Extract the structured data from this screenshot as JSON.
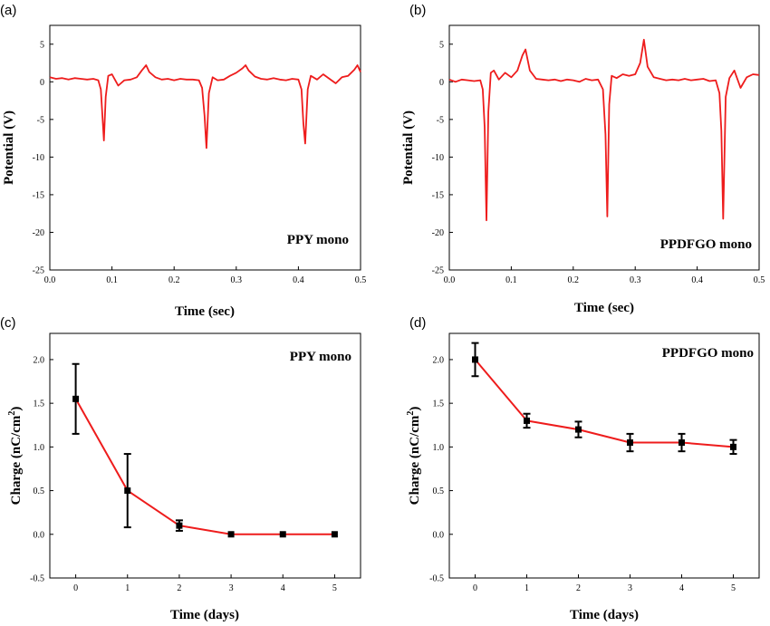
{
  "colors": {
    "series": "#ee1c1c",
    "marker": "#000000",
    "axis": "#000000"
  },
  "chart_data": [
    {
      "panel": "(a)",
      "type": "line",
      "annotation": "PPY mono",
      "xlabel": "Time (sec)",
      "ylabel": "Potential (V)",
      "xlim": [
        0.0,
        0.5
      ],
      "ylim": [
        -25,
        7.5
      ],
      "xticks": [
        "0.0",
        "0.1",
        "0.2",
        "0.3",
        "0.4",
        "0.5"
      ],
      "yticks": [
        "5",
        "0",
        "-5",
        "-10",
        "-15",
        "-20",
        "-25"
      ],
      "series": [
        {
          "x": [
            0.0,
            0.01,
            0.02,
            0.03,
            0.04,
            0.05,
            0.06,
            0.07,
            0.078,
            0.082,
            0.085,
            0.087,
            0.09,
            0.094,
            0.1,
            0.11,
            0.12,
            0.13,
            0.14,
            0.148,
            0.155,
            0.16,
            0.17,
            0.18,
            0.19,
            0.2,
            0.21,
            0.22,
            0.23,
            0.24,
            0.245,
            0.249,
            0.252,
            0.256,
            0.262,
            0.27,
            0.28,
            0.29,
            0.3,
            0.31,
            0.315,
            0.32,
            0.33,
            0.34,
            0.35,
            0.36,
            0.37,
            0.38,
            0.39,
            0.4,
            0.405,
            0.408,
            0.411,
            0.415,
            0.42,
            0.43,
            0.44,
            0.45,
            0.46,
            0.47,
            0.48,
            0.49,
            0.495,
            0.5
          ],
          "values": [
            0.6,
            0.4,
            0.5,
            0.3,
            0.5,
            0.4,
            0.3,
            0.4,
            0.2,
            -1.0,
            -5.0,
            -7.8,
            -2.0,
            0.8,
            1.0,
            -0.5,
            0.2,
            0.3,
            0.6,
            1.5,
            2.2,
            1.3,
            0.6,
            0.3,
            0.4,
            0.2,
            0.4,
            0.3,
            0.3,
            0.2,
            -0.8,
            -4.5,
            -8.8,
            -1.5,
            0.6,
            0.2,
            0.3,
            0.8,
            1.2,
            1.8,
            2.2,
            1.5,
            0.7,
            0.4,
            0.3,
            0.5,
            0.3,
            0.2,
            0.4,
            0.3,
            -1.0,
            -5.5,
            -8.2,
            -1.0,
            0.8,
            0.3,
            1.0,
            0.4,
            -0.2,
            0.6,
            0.8,
            1.6,
            2.2,
            1.3
          ]
        }
      ]
    },
    {
      "panel": "(b)",
      "type": "line",
      "annotation": "PPDFGO mono",
      "xlabel": "Time (sec)",
      "ylabel": "Potential (V)",
      "xlim": [
        0.0,
        0.5
      ],
      "ylim": [
        -25,
        7.5
      ],
      "xticks": [
        "0.0",
        "0.1",
        "0.2",
        "0.3",
        "0.4",
        "0.5"
      ],
      "yticks": [
        "5",
        "0",
        "-5",
        "-10",
        "-15",
        "-20",
        "-25"
      ],
      "series": [
        {
          "x": [
            0.0,
            0.01,
            0.02,
            0.03,
            0.04,
            0.05,
            0.054,
            0.057,
            0.06,
            0.063,
            0.067,
            0.072,
            0.08,
            0.09,
            0.1,
            0.11,
            0.118,
            0.123,
            0.13,
            0.14,
            0.15,
            0.16,
            0.17,
            0.18,
            0.19,
            0.2,
            0.21,
            0.22,
            0.23,
            0.24,
            0.248,
            0.252,
            0.255,
            0.258,
            0.262,
            0.27,
            0.28,
            0.29,
            0.3,
            0.308,
            0.314,
            0.32,
            0.33,
            0.34,
            0.35,
            0.36,
            0.37,
            0.38,
            0.39,
            0.4,
            0.41,
            0.42,
            0.43,
            0.436,
            0.439,
            0.442,
            0.446,
            0.452,
            0.46,
            0.47,
            0.48,
            0.49,
            0.5
          ],
          "values": [
            0.3,
            0.0,
            0.3,
            0.2,
            0.1,
            0.2,
            -1.0,
            -6.0,
            -18.4,
            -4.0,
            1.2,
            1.5,
            0.3,
            1.2,
            0.6,
            1.5,
            3.5,
            4.3,
            1.5,
            0.4,
            0.3,
            0.2,
            0.3,
            0.1,
            0.3,
            0.2,
            0.0,
            0.4,
            0.2,
            0.3,
            -1.0,
            -7.0,
            -17.9,
            -3.0,
            0.8,
            0.5,
            1.0,
            0.8,
            1.0,
            2.5,
            5.6,
            2.0,
            0.6,
            0.4,
            0.2,
            0.3,
            0.2,
            0.4,
            0.2,
            0.3,
            0.4,
            0.1,
            0.2,
            -1.5,
            -6.5,
            -18.2,
            -2.0,
            0.5,
            1.5,
            -0.8,
            0.6,
            1.0,
            0.9
          ]
        }
      ]
    },
    {
      "panel": "(c)",
      "type": "line",
      "annotation": "PPY mono",
      "xlabel": "Time (days)",
      "ylabel": "Charge (nC/cm",
      "ylabel_sup": "2",
      "ylabel_end": ")",
      "xlim": [
        -0.5,
        5.5
      ],
      "ylim": [
        -0.5,
        2.3
      ],
      "xticks": [
        "0",
        "1",
        "2",
        "3",
        "4",
        "5"
      ],
      "yticks": [
        "2.0",
        "1.5",
        "1.0",
        "0.5",
        "0.0",
        "-0.5"
      ],
      "series": [
        {
          "x": [
            0,
            1,
            2,
            3,
            4,
            5
          ],
          "values": [
            1.55,
            0.5,
            0.1,
            0.0,
            0.0,
            0.0
          ],
          "errors": [
            0.4,
            0.42,
            0.06,
            0.0,
            0.0,
            0.0
          ]
        }
      ]
    },
    {
      "panel": "(d)",
      "type": "line",
      "annotation": "PPDFGO mono",
      "xlabel": "Time (days)",
      "ylabel": "Charge (nC/cm",
      "ylabel_sup": "2",
      "ylabel_end": ")",
      "xlim": [
        -0.5,
        5.5
      ],
      "ylim": [
        -0.5,
        2.3
      ],
      "xticks": [
        "0",
        "1",
        "2",
        "3",
        "4",
        "5"
      ],
      "yticks": [
        "2.0",
        "1.5",
        "1.0",
        "0.5",
        "0.0",
        "-0.5"
      ],
      "series": [
        {
          "x": [
            0,
            1,
            2,
            3,
            4,
            5
          ],
          "values": [
            2.0,
            1.3,
            1.2,
            1.05,
            1.05,
            1.0
          ],
          "errors": [
            0.19,
            0.08,
            0.09,
            0.1,
            0.1,
            0.08
          ]
        }
      ]
    }
  ]
}
